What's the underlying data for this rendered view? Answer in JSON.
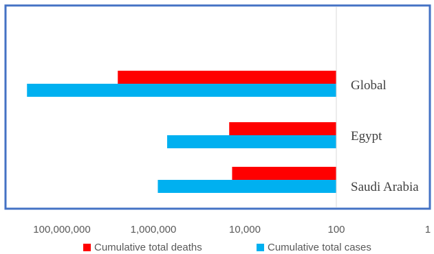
{
  "chart_data": {
    "type": "bar",
    "orientation": "horizontal",
    "x_axis": {
      "scale": "log",
      "reversed": true,
      "min": 1,
      "max": 1000000000,
      "tick_labels": [
        "100,000,000",
        "1,000,000",
        "10,000",
        "100",
        "1"
      ],
      "tick_values": [
        100000000,
        1000000,
        10000,
        100,
        1
      ]
    },
    "categories": [
      "Global",
      "Egypt",
      "Saudi Arabia"
    ],
    "series": [
      {
        "name": "Cumulative total deaths",
        "color": "#ff0000",
        "values": [
          6000000,
          22000,
          19000
        ]
      },
      {
        "name": "Cumulative total cases",
        "color": "#00b0f0",
        "values": [
          580000000,
          500000,
          800000
        ]
      }
    ],
    "legend_position": "bottom",
    "grid": false,
    "frame_color": "#4472c4",
    "axis_line_color": "#d9d9d9"
  }
}
